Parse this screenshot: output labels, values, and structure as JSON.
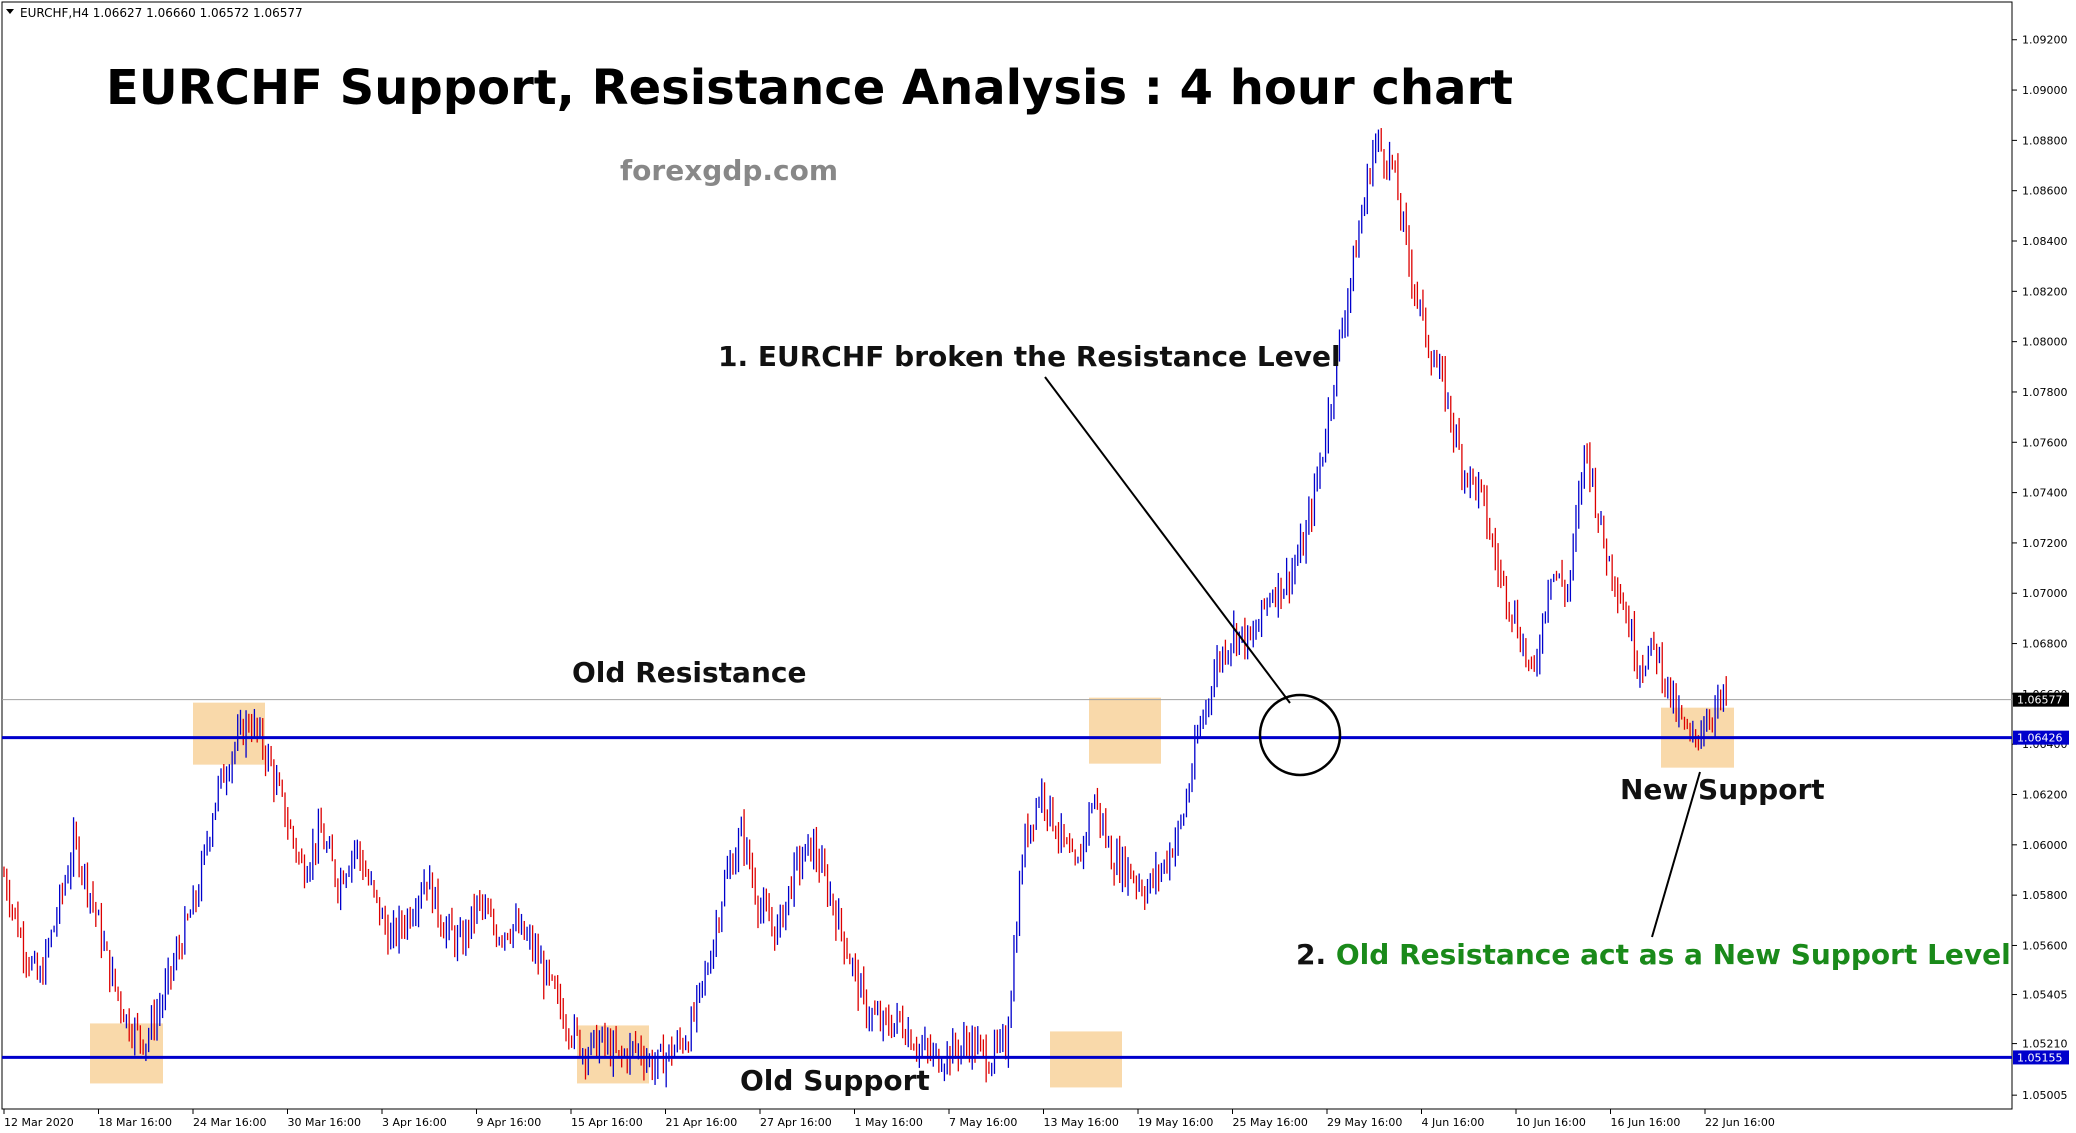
{
  "chart_data": {
    "type": "candlestick",
    "symbol_header": "EURCHF,H4  1.06627 1.06660 1.06572 1.06577",
    "title": "EURCHF Support, Resistance Analysis : 4 hour chart",
    "watermark": "forexgdp.com",
    "ylim": [
      1.0495,
      1.0935
    ],
    "y_ticks": [
      "1.09200",
      "1.09000",
      "1.08800",
      "1.08600",
      "1.08400",
      "1.08200",
      "1.08000",
      "1.07800",
      "1.07600",
      "1.07400",
      "1.07200",
      "1.07000",
      "1.06800",
      "1.06600",
      "1.06400",
      "1.06200",
      "1.06000",
      "1.05800",
      "1.05600",
      "1.05405",
      "1.05210",
      "1.05005"
    ],
    "x_labels": [
      "12 Mar 2020",
      "18 Mar 16:00",
      "24 Mar 16:00",
      "30 Mar 16:00",
      "3 Apr 16:00",
      "9 Apr 16:00",
      "15 Apr 16:00",
      "21 Apr 16:00",
      "27 Apr 16:00",
      "1 May 16:00",
      "7 May 16:00",
      "13 May 16:00",
      "19 May 16:00",
      "25 May 16:00",
      "29 May 16:00",
      "4 Jun 16:00",
      "10 Jun 16:00",
      "16 Jun 16:00",
      "22 Jun 16:00"
    ],
    "current_price": 1.06577,
    "current_price_label": "1.06577",
    "levels": [
      {
        "value": 1.06426,
        "label": "1.06426",
        "color": "#0000cc"
      },
      {
        "value": 1.05155,
        "label": "1.05155",
        "color": "#0000cc"
      }
    ],
    "price_path": [
      1.0588,
      1.0562,
      1.0545,
      1.0572,
      1.0601,
      1.0579,
      1.055,
      1.053,
      1.0522,
      1.0538,
      1.056,
      1.058,
      1.0618,
      1.0638,
      1.065,
      1.0635,
      1.0612,
      1.059,
      1.0605,
      1.0585,
      1.06,
      1.058,
      1.0562,
      1.0572,
      1.0588,
      1.0568,
      1.056,
      1.0577,
      1.0565,
      1.0568,
      1.056,
      1.0545,
      1.053,
      1.0518,
      1.0522,
      1.0515,
      1.052,
      1.0512,
      1.0518,
      1.0525,
      1.055,
      1.0585,
      1.0605,
      1.0575,
      1.0565,
      1.059,
      1.06,
      1.058,
      1.0558,
      1.0535,
      1.0528,
      1.053,
      1.052,
      1.0515,
      1.0518,
      1.0522,
      1.0515,
      1.052,
      1.06,
      1.0622,
      1.0605,
      1.0588,
      1.062,
      1.0595,
      1.059,
      1.0582,
      1.0592,
      1.0608,
      1.0645,
      1.0672,
      1.0685,
      1.068,
      1.07,
      1.0705,
      1.072,
      1.0755,
      1.08,
      1.084,
      1.088,
      1.087,
      1.083,
      1.08,
      1.078,
      1.075,
      1.074,
      1.071,
      1.069,
      1.0665,
      1.071,
      1.07,
      1.076,
      1.072,
      1.07,
      1.0672,
      1.0678,
      1.0655,
      1.064,
      1.0652,
      1.0658
    ],
    "annotations": [
      {
        "text": "Old Resistance",
        "color": "#111111"
      },
      {
        "text": "Old Support",
        "color": "#111111"
      },
      {
        "text": "New Support",
        "color": "#111111"
      },
      {
        "text": "1. EURCHF broken the Resistance Level",
        "color": "#111111"
      },
      {
        "prefix": "2. ",
        "text": "Old Resistance act as a New Support Level",
        "color": "#1a8a1a"
      }
    ],
    "colors": {
      "bull": "#0000cc",
      "bear": "#dd0000",
      "level_line": "#0000cc",
      "highlight": "#f9d9aa",
      "price_line": "#a0a0a0",
      "axis": "#000000"
    }
  }
}
